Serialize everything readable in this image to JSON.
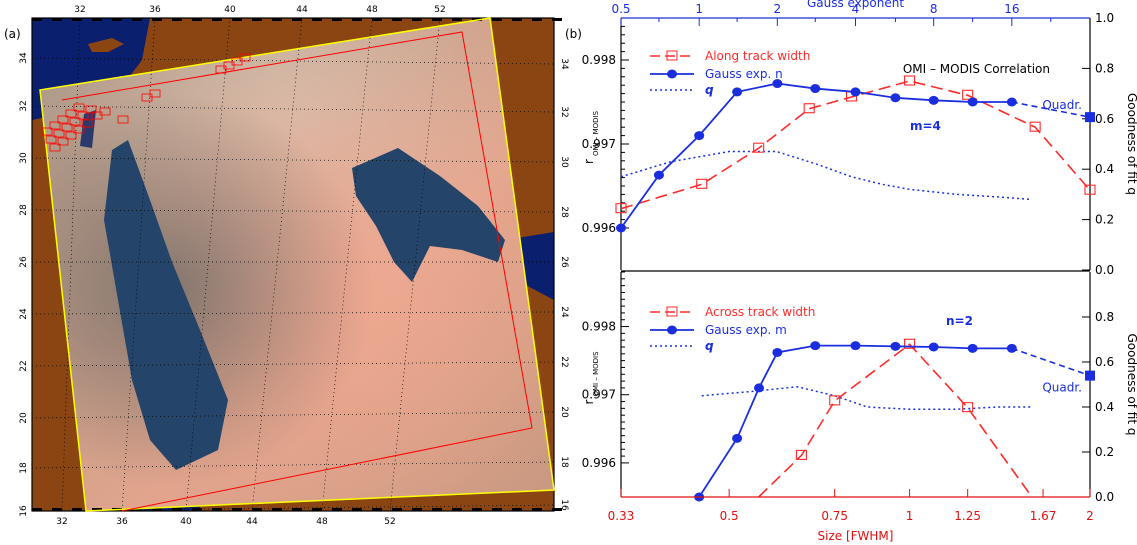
{
  "panel_labels": {
    "a": "(a)",
    "b": "(b)"
  },
  "map": {
    "top_lon_ticks": [
      "32",
      "36",
      "40",
      "44",
      "48",
      "52"
    ],
    "bottom_lon_ticks": [
      "32",
      "36",
      "40",
      "44",
      "48",
      "52"
    ],
    "lat_ticks": [
      "16",
      "18",
      "20",
      "22",
      "24",
      "26",
      "28",
      "30",
      "32",
      "34"
    ],
    "colors": {
      "sea": "#0a1f6e",
      "land_outside": "#8b4513",
      "swath_outline": "#ffff00",
      "footprint": "#ff0000"
    }
  },
  "colors": {
    "along": "#ff2a2a",
    "gauss": "#1a2ee0",
    "q": "#1a2ee0",
    "bottom_axis": "#e01010",
    "top_axis": "#1a2ee0"
  },
  "chart_data": [
    {
      "type": "line",
      "panel": "top",
      "title": "OMI – MODIS Correlation",
      "top_axis_label": "Gauss exponent",
      "top_ticks": [
        "0.5",
        "1",
        "2",
        "4",
        "8",
        "16"
      ],
      "ylabel": "r",
      "ylabel_sub": "OMI – MODIS",
      "y2label": "Goodness of fit q",
      "ylim": [
        0.9955,
        0.9985
      ],
      "y_ticks": [
        "0.996",
        "0.997",
        "0.998"
      ],
      "y2lim": [
        0.0,
        1.0
      ],
      "y2_ticks": [
        "0.0",
        "0.2",
        "0.4",
        "0.6",
        "0.8",
        "1.0"
      ],
      "annotation": "m=4",
      "quadr_label": "Quadr.",
      "series": [
        {
          "name": "Along track width",
          "axis": "size",
          "x": [
            0.33,
            0.45,
            0.56,
            0.68,
            0.8,
            1.0,
            1.25,
            1.62,
            2.0
          ],
          "y": [
            0.99623,
            0.99652,
            0.99695,
            0.99742,
            0.99756,
            0.99775,
            0.99758,
            0.9972,
            0.99645
          ]
        },
        {
          "name": "Gauss exp. n",
          "axis": "exponent",
          "x": [
            0.5,
            0.7,
            1.0,
            1.4,
            2.0,
            2.8,
            4.0,
            5.7,
            8.0,
            11.3,
            16.0
          ],
          "y": [
            0.996,
            0.99663,
            0.9971,
            0.99762,
            0.99772,
            0.99766,
            0.99762,
            0.99755,
            0.99752,
            0.9975,
            0.9975
          ],
          "quadr_y": 0.99732
        },
        {
          "name": "q",
          "axis": "size",
          "scale": "q",
          "x": [
            0.33,
            0.4,
            0.5,
            0.6,
            0.7,
            0.8,
            0.9,
            1.0,
            1.2,
            1.4,
            1.6
          ],
          "y": [
            0.37,
            0.43,
            0.47,
            0.47,
            0.42,
            0.37,
            0.34,
            0.32,
            0.3,
            0.29,
            0.28
          ]
        }
      ]
    },
    {
      "type": "line",
      "panel": "bottom",
      "xlabel": "Size [FWHM]",
      "x_ticks": [
        "0.33",
        "0.5",
        "0.75",
        "1",
        "1.25",
        "1.67",
        "2"
      ],
      "ylabel": "r",
      "ylabel_sub": "OMI – MODIS",
      "y2label": "Goodness of fit q",
      "ylim": [
        0.9955,
        0.9988
      ],
      "y_ticks": [
        "0.996",
        "0.997",
        "0.998"
      ],
      "y2lim": [
        0.0,
        1.0
      ],
      "y2_ticks": [
        "0.0",
        "0.2",
        "0.4",
        "0.6",
        "0.8"
      ],
      "annotation": "n=2",
      "quadr_label": "Quadr.",
      "series": [
        {
          "name": "Across track width",
          "axis": "size",
          "x": [
            0.56,
            0.66,
            0.75,
            1.0,
            1.25,
            1.6
          ],
          "y": [
            0.9955,
            0.99611,
            0.99691,
            0.99774,
            0.99681,
            0.9955
          ]
        },
        {
          "name": "Gauss exp. m",
          "axis": "exponent",
          "x": [
            1.0,
            1.4,
            1.7,
            2.0,
            2.8,
            4.0,
            5.7,
            8.0,
            11.3,
            16.0
          ],
          "y": [
            0.9955,
            0.99636,
            0.9971,
            0.99762,
            0.99772,
            0.99772,
            0.99771,
            0.9977,
            0.99768,
            0.99768
          ],
          "quadr_y": 0.99728
        },
        {
          "name": "q",
          "axis": "size",
          "scale": "q",
          "x": [
            0.45,
            0.55,
            0.65,
            0.75,
            0.85,
            1.0,
            1.2,
            1.4,
            1.6
          ],
          "y": [
            0.45,
            0.47,
            0.49,
            0.45,
            0.4,
            0.39,
            0.39,
            0.4,
            0.4
          ]
        }
      ]
    }
  ]
}
